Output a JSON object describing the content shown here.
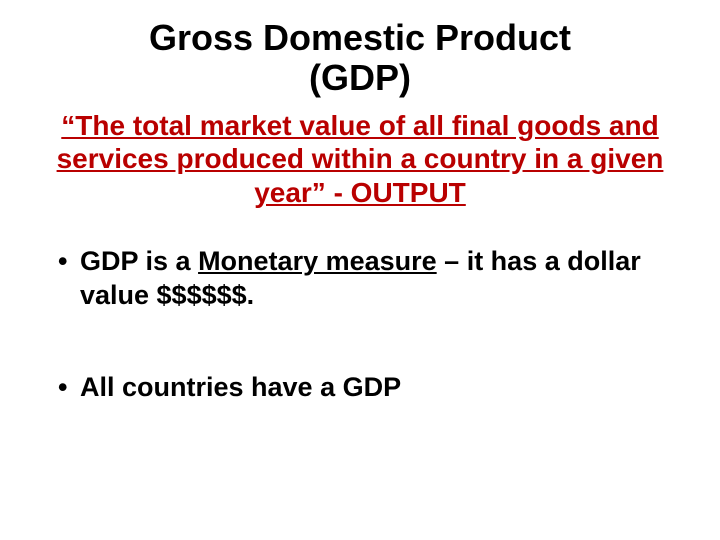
{
  "title": {
    "line1": "Gross Domestic Product",
    "line2": "(GDP)",
    "fontsize": 36,
    "color": "#000000"
  },
  "definition": {
    "text": "“The total market value of all final goods and services produced within a country in a given year” - OUTPUT",
    "fontsize": 28,
    "color": "#b90000"
  },
  "bullets": {
    "fontsize": 27,
    "color": "#000000",
    "items": [
      {
        "pre": "GDP is a ",
        "underlined": "Monetary measure",
        "post": " – it has a dollar value $$$$$$."
      },
      {
        "pre": "All countries have a GDP",
        "underlined": "",
        "post": ""
      }
    ],
    "gap_after_first": 58
  },
  "background_color": "#ffffff"
}
